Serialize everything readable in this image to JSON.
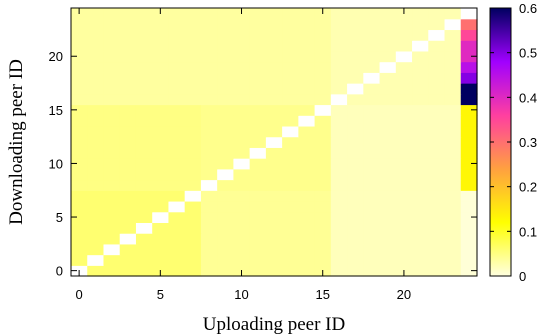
{
  "chart_data": {
    "type": "heatmap",
    "title": "",
    "xlabel": "Uploading peer ID",
    "ylabel": "Downloading peer ID",
    "x_range": [
      0,
      24
    ],
    "y_range": [
      0,
      24
    ],
    "x_ticks": [
      "0",
      "5",
      "10",
      "15",
      "20"
    ],
    "y_ticks": [
      "0",
      "5",
      "10",
      "15",
      "20"
    ],
    "colorbar": {
      "range": [
        0,
        0.6
      ],
      "ticks": [
        "0",
        "0.1",
        "0.2",
        "0.3",
        "0.4",
        "0.5",
        "0.6"
      ],
      "palette": [
        "#ffffe0",
        "#ffff00",
        "#ffa040",
        "#ff3fa0",
        "#a000ff",
        "#000060"
      ]
    },
    "diagonal": "blank",
    "approx_values": {
      "x0_7_y0_7": 0.06,
      "x0_7_y8_15": 0.05,
      "x0_7_y16_23": 0.035,
      "x8_15_y0_7": 0.04,
      "x8_15_y8_15": 0.045,
      "x8_15_y16_23": 0.035,
      "x16_23_y0_7": 0.02,
      "x16_23_y8_15": 0.02,
      "x16_23_y16_23": 0.025,
      "x24_y0_7": 0.005,
      "x24_y8_15": 0.13,
      "x24_y16": 0.6,
      "x24_y17": 0.6,
      "x24_y18": 0.5,
      "x24_y19": 0.45,
      "x24_y20": 0.4,
      "x24_y21": 0.4,
      "x24_y22": 0.35,
      "x24_y23": 0.3
    }
  }
}
